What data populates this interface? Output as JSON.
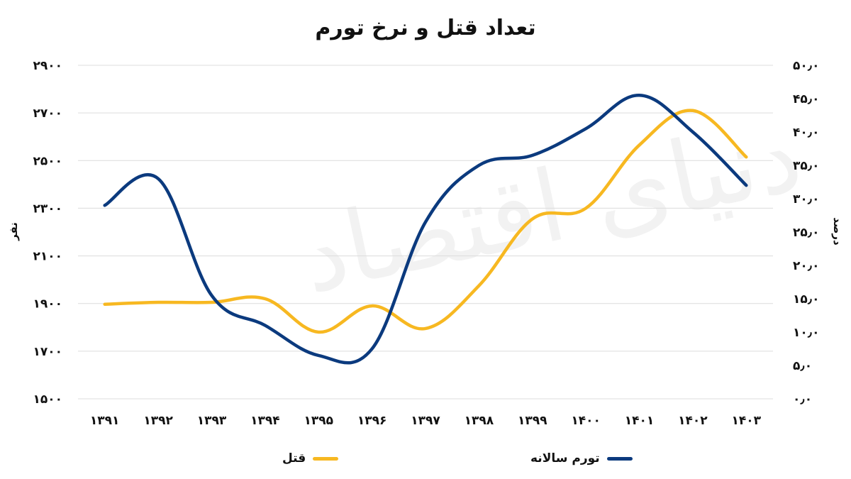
{
  "chart_data": {
    "type": "line",
    "title": "تعداد قتل و نرخ تورم",
    "categories": [
      "۱۳۹۱",
      "۱۳۹۲",
      "۱۳۹۳",
      "۱۳۹۴",
      "۱۳۹۵",
      "۱۳۹۶",
      "۱۳۹۷",
      "۱۳۹۸",
      "۱۳۹۹",
      "۱۴۰۰",
      "۱۴۰۱",
      "۱۴۰۲",
      "۱۴۰۳"
    ],
    "ylabel_left": "نفر",
    "ylabel_right": "درصد",
    "ylim_left": [
      1500,
      2900
    ],
    "yticks_left": [
      "۱۵۰۰",
      "۱۷۰۰",
      "۱۹۰۰",
      "۲۱۰۰",
      "۲۳۰۰",
      "۲۵۰۰",
      "۲۷۰۰",
      "۲۹۰۰"
    ],
    "ylim_right": [
      0,
      50
    ],
    "yticks_right": [
      "۰٫۰",
      "۵٫۰",
      "۱۰٫۰",
      "۱۵٫۰",
      "۲۰٫۰",
      "۲۵٫۰",
      "۳۰٫۰",
      "۳۵٫۰",
      "۴۰٫۰",
      "۴۵٫۰",
      "۵۰٫۰"
    ],
    "grid": true,
    "legend_position": "bottom",
    "series": [
      {
        "name": "قتل",
        "axis": "left",
        "color": "#F7B821",
        "values": [
          1897,
          1905,
          1905,
          1920,
          1780,
          1890,
          1795,
          1975,
          2255,
          2300,
          2565,
          2710,
          2515
        ]
      },
      {
        "name": "تورم سالانه",
        "axis": "right",
        "color": "#0B3A7E",
        "values": [
          29.0,
          33.0,
          15.5,
          11.0,
          6.5,
          7.5,
          26.5,
          35.0,
          36.5,
          40.5,
          45.5,
          40.0,
          32.0
        ]
      }
    ]
  }
}
